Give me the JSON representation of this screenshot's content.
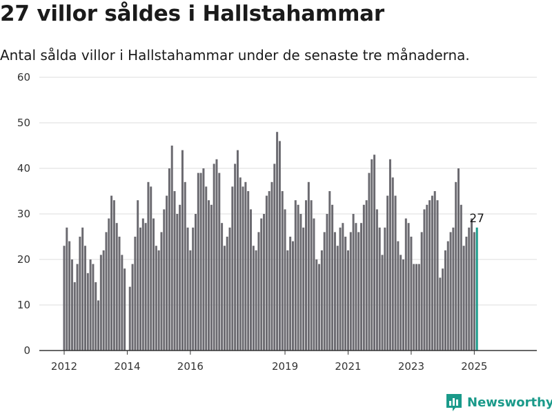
{
  "header": {
    "title": "27 villor såldes i Hallstahammar",
    "subtitle": "Antal sålda villor i Hallstahammar under de senaste tre månaderna."
  },
  "brand": {
    "name": "Newsworthy"
  },
  "colors": {
    "bar": "#6b6a70",
    "highlight": "#1a9a8a",
    "grid": "#dddddd",
    "axis": "#333333"
  },
  "chart_data": {
    "type": "bar",
    "x_start": "2012-01",
    "x_end": "2025-01",
    "xticks": [
      {
        "label": "2012",
        "date": "2012-01"
      },
      {
        "label": "2014",
        "date": "2014-01"
      },
      {
        "label": "2016",
        "date": "2016-01"
      },
      {
        "label": "2019",
        "date": "2019-01"
      },
      {
        "label": "2021",
        "date": "2021-01"
      },
      {
        "label": "2023",
        "date": "2023-01"
      },
      {
        "label": "2025",
        "date": "2025-01"
      }
    ],
    "yticks": [
      0,
      10,
      20,
      30,
      40,
      50,
      60
    ],
    "ylim": [
      0,
      60
    ],
    "grid": true,
    "values": [
      23,
      27,
      24,
      20,
      15,
      19,
      25,
      27,
      23,
      17,
      20,
      19,
      15,
      11,
      21,
      22,
      26,
      29,
      34,
      33,
      28,
      25,
      21,
      18,
      0,
      14,
      19,
      25,
      33,
      27,
      29,
      28,
      37,
      36,
      29,
      23,
      22,
      26,
      31,
      34,
      40,
      45,
      35,
      30,
      32,
      44,
      37,
      27,
      22,
      27,
      30,
      39,
      39,
      40,
      36,
      33,
      32,
      41,
      42,
      39,
      28,
      23,
      25,
      27,
      36,
      41,
      44,
      38,
      36,
      37,
      35,
      31,
      23,
      22,
      26,
      29,
      30,
      34,
      35,
      37,
      41,
      48,
      46,
      35,
      31,
      22,
      25,
      24,
      33,
      32,
      30,
      27,
      33,
      37,
      33,
      29,
      20,
      19,
      22,
      26,
      30,
      35,
      32,
      26,
      23,
      27,
      28,
      25,
      22,
      26,
      30,
      28,
      26,
      28,
      32,
      33,
      39,
      42,
      43,
      31,
      27,
      21,
      27,
      34,
      42,
      38,
      34,
      24,
      21,
      20,
      29,
      28,
      25,
      19,
      19,
      19,
      26,
      31,
      32,
      33,
      34,
      35,
      33,
      16,
      18,
      22,
      24,
      26,
      27,
      37,
      40,
      32,
      23,
      25,
      27,
      29,
      26,
      27
    ],
    "highlight_last": true,
    "last_value_label": "27"
  }
}
